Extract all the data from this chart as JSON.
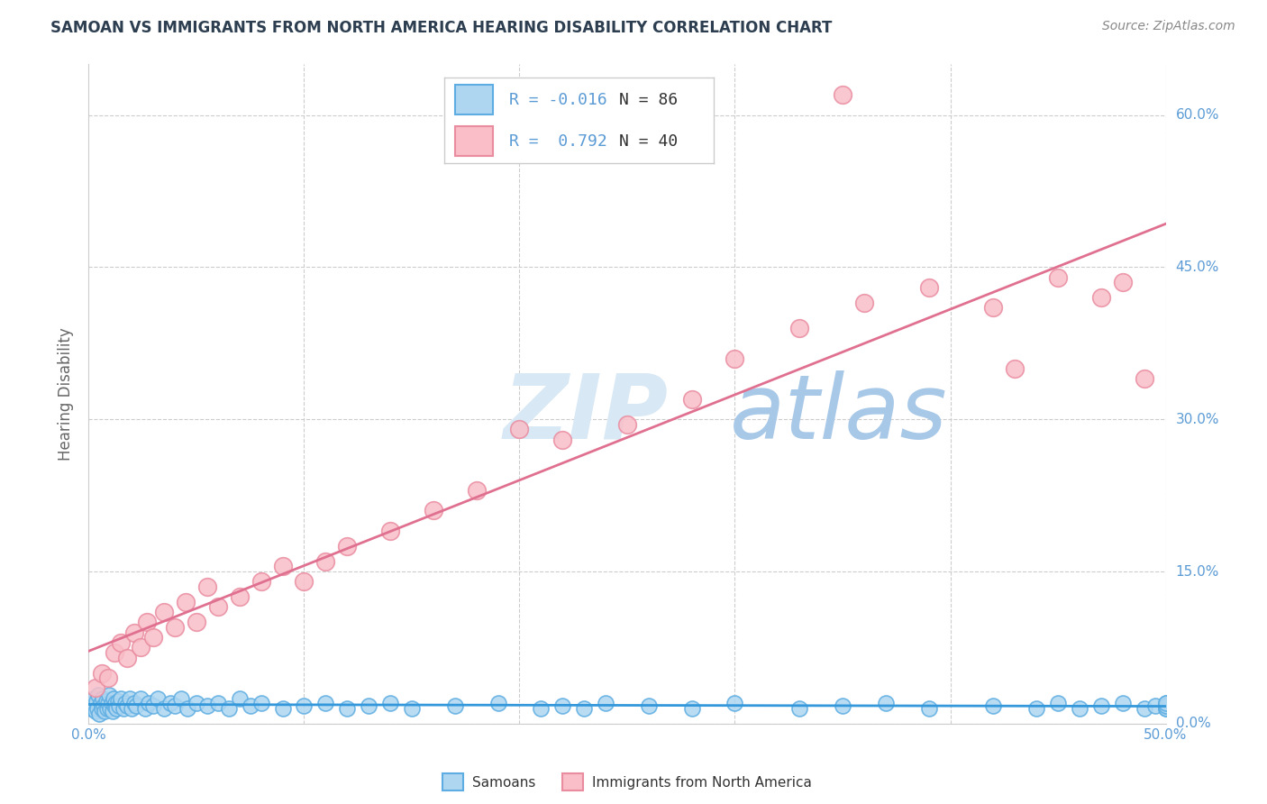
{
  "title": "SAMOAN VS IMMIGRANTS FROM NORTH AMERICA HEARING DISABILITY CORRELATION CHART",
  "source": "Source: ZipAtlas.com",
  "ylabel": "Hearing Disability",
  "ytick_labels": [
    "0.0%",
    "15.0%",
    "30.0%",
    "45.0%",
    "60.0%"
  ],
  "ytick_values": [
    0.0,
    15.0,
    30.0,
    45.0,
    60.0
  ],
  "xtick_values": [
    0.0,
    10.0,
    20.0,
    30.0,
    40.0,
    50.0
  ],
  "xlim": [
    0.0,
    50.0
  ],
  "ylim": [
    0.0,
    65.0
  ],
  "samoans_R": -0.016,
  "samoans_N": 86,
  "immigrants_R": 0.792,
  "immigrants_N": 40,
  "color_samoans_face": "#AED6F1",
  "color_samoans_edge": "#5DADE2",
  "color_samoans_line": "#3498DB",
  "color_immigrants_face": "#F9BEC7",
  "color_immigrants_edge": "#E98CA0",
  "color_immigrants_line": "#E07090",
  "legend_label_samoans": "Samoans",
  "legend_label_immigrants": "Immigrants from North America",
  "background_color": "#FFFFFF",
  "samoans_x": [
    0.1,
    0.15,
    0.2,
    0.25,
    0.3,
    0.35,
    0.4,
    0.45,
    0.5,
    0.55,
    0.6,
    0.65,
    0.7,
    0.75,
    0.8,
    0.85,
    0.9,
    0.95,
    1.0,
    1.05,
    1.1,
    1.15,
    1.2,
    1.25,
    1.3,
    1.35,
    1.4,
    1.5,
    1.6,
    1.7,
    1.8,
    1.9,
    2.0,
    2.1,
    2.2,
    2.4,
    2.6,
    2.8,
    3.0,
    3.2,
    3.5,
    3.8,
    4.0,
    4.3,
    4.6,
    5.0,
    5.5,
    6.0,
    6.5,
    7.0,
    7.5,
    8.0,
    9.0,
    10.0,
    11.0,
    12.0,
    13.0,
    14.0,
    15.0,
    17.0,
    19.0,
    21.0,
    22.0,
    23.0,
    24.0,
    26.0,
    28.0,
    30.0,
    33.0,
    35.0,
    37.0,
    39.0,
    42.0,
    44.0,
    45.0,
    46.0,
    47.0,
    48.0,
    49.0,
    49.5,
    50.0,
    50.0,
    50.0,
    50.0,
    50.0,
    50.0
  ],
  "samoans_y": [
    1.5,
    2.0,
    1.8,
    2.5,
    1.2,
    2.2,
    1.5,
    2.8,
    1.0,
    2.0,
    1.5,
    2.5,
    1.8,
    1.2,
    2.2,
    1.5,
    2.0,
    2.8,
    1.5,
    2.0,
    1.2,
    2.5,
    1.8,
    2.0,
    1.5,
    2.2,
    1.8,
    2.5,
    1.5,
    2.0,
    1.8,
    2.5,
    1.5,
    2.0,
    1.8,
    2.5,
    1.5,
    2.0,
    1.8,
    2.5,
    1.5,
    2.0,
    1.8,
    2.5,
    1.5,
    2.0,
    1.8,
    2.0,
    1.5,
    2.5,
    1.8,
    2.0,
    1.5,
    1.8,
    2.0,
    1.5,
    1.8,
    2.0,
    1.5,
    1.8,
    2.0,
    1.5,
    1.8,
    1.5,
    2.0,
    1.8,
    1.5,
    2.0,
    1.5,
    1.8,
    2.0,
    1.5,
    1.8,
    1.5,
    2.0,
    1.5,
    1.8,
    2.0,
    1.5,
    1.8,
    1.5,
    1.8,
    2.0,
    1.5,
    1.8,
    2.0
  ],
  "immigrants_x": [
    0.3,
    0.6,
    0.9,
    1.2,
    1.5,
    1.8,
    2.1,
    2.4,
    2.7,
    3.0,
    3.5,
    4.0,
    4.5,
    5.0,
    5.5,
    6.0,
    7.0,
    8.0,
    9.0,
    10.0,
    11.0,
    12.0,
    14.0,
    16.0,
    18.0,
    20.0,
    22.0,
    25.0,
    28.0,
    30.0,
    33.0,
    36.0,
    39.0,
    42.0,
    45.0,
    47.0,
    48.0,
    49.0,
    35.0,
    43.0
  ],
  "immigrants_y": [
    3.5,
    5.0,
    4.5,
    7.0,
    8.0,
    6.5,
    9.0,
    7.5,
    10.0,
    8.5,
    11.0,
    9.5,
    12.0,
    10.0,
    13.5,
    11.5,
    12.5,
    14.0,
    15.5,
    14.0,
    16.0,
    17.5,
    19.0,
    21.0,
    23.0,
    29.0,
    28.0,
    29.5,
    32.0,
    36.0,
    39.0,
    41.5,
    43.0,
    41.0,
    44.0,
    42.0,
    43.5,
    34.0,
    62.0,
    35.0
  ]
}
